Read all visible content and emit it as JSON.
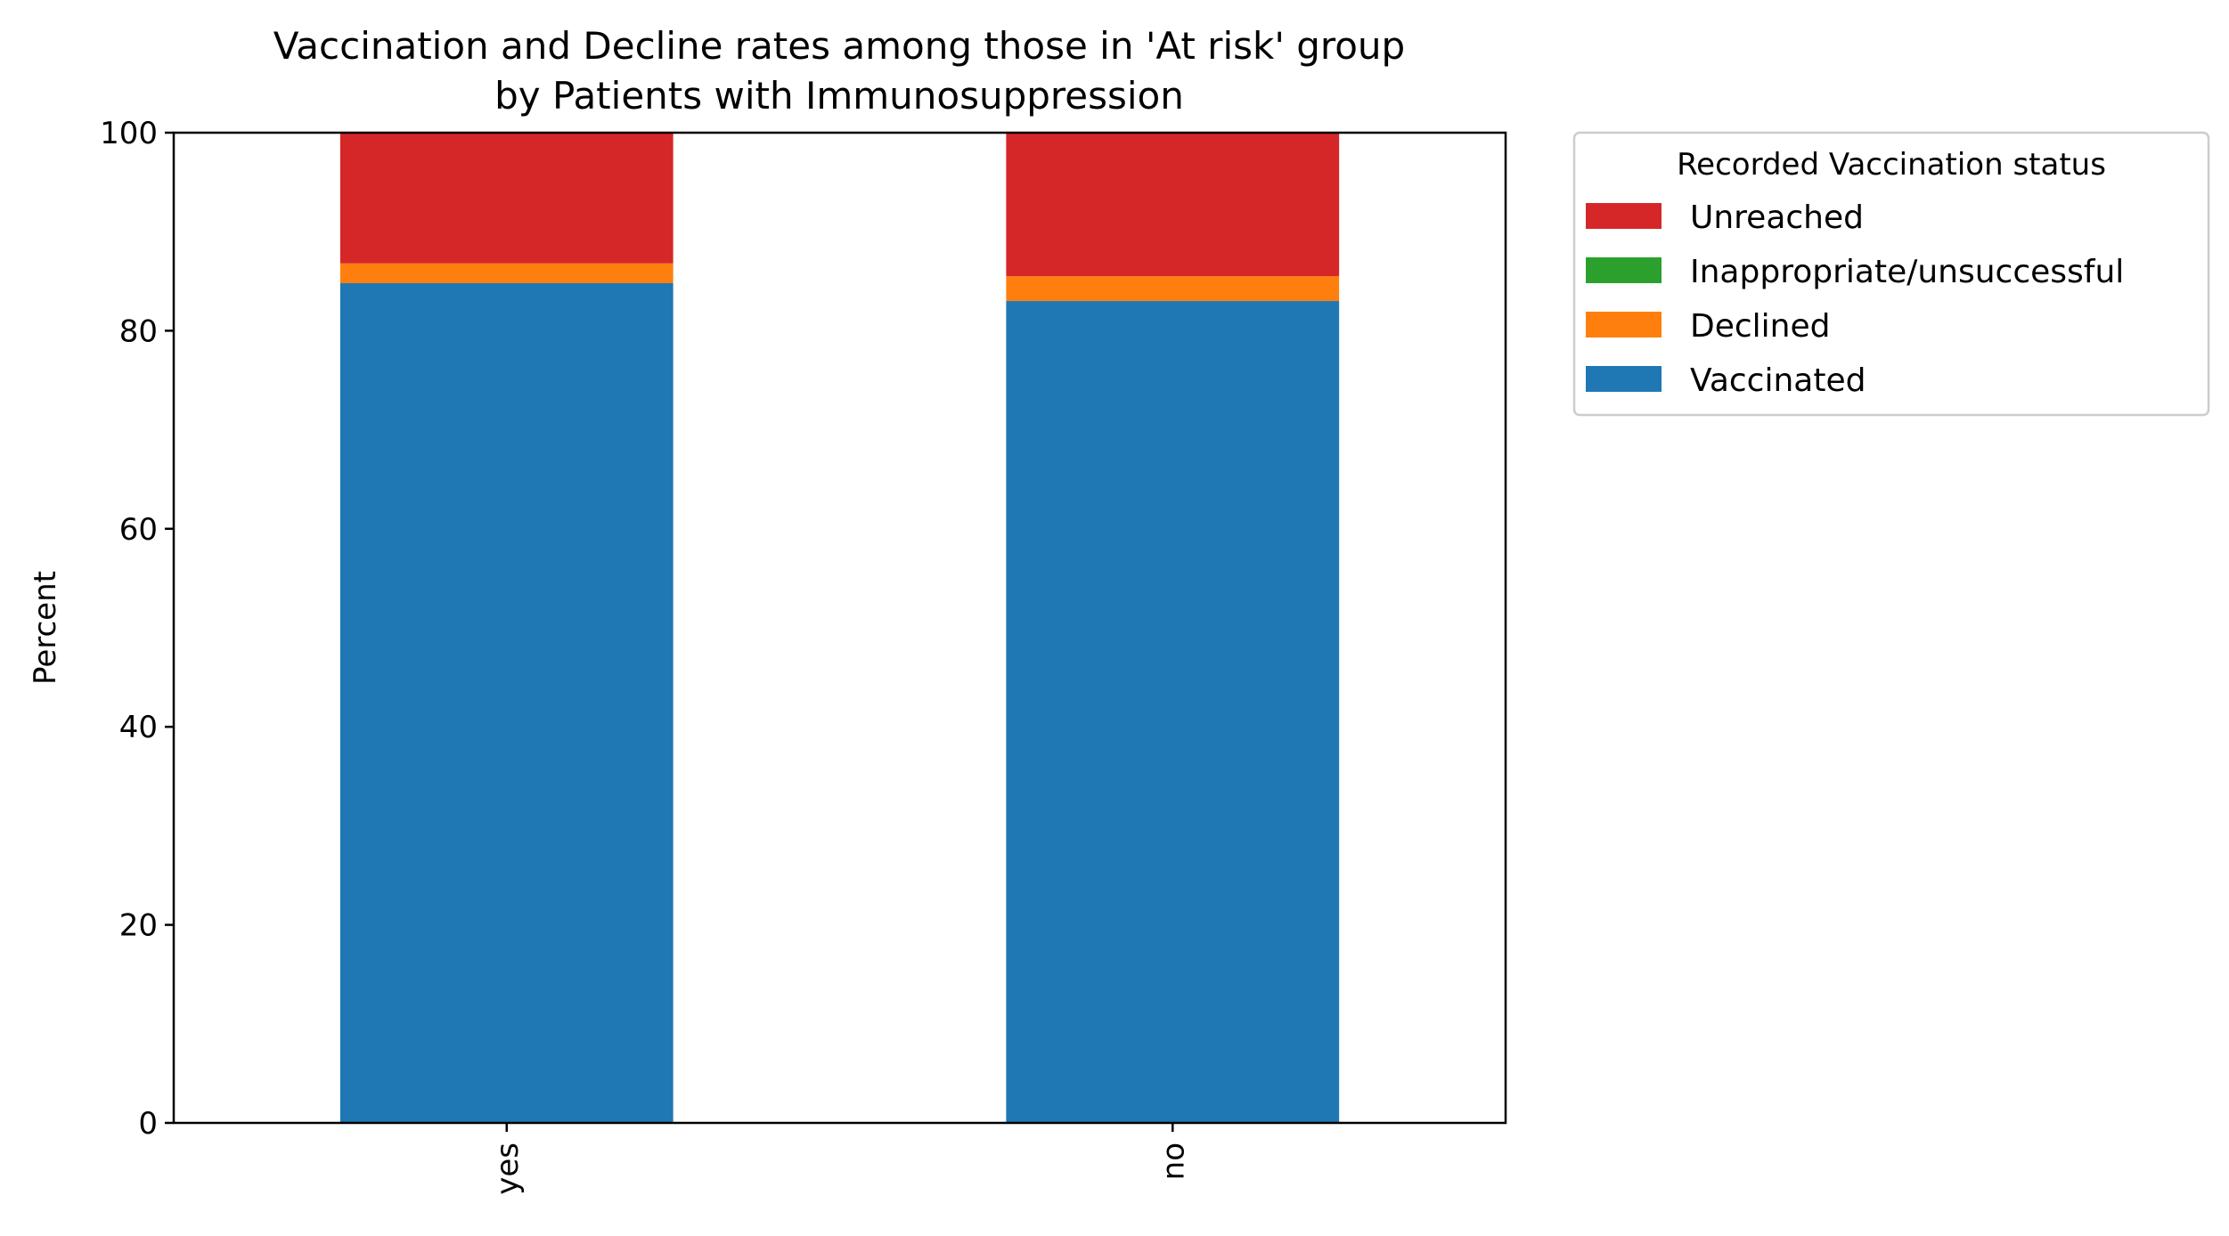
{
  "chart_data": {
    "type": "bar",
    "stacked": true,
    "title_line1": "Vaccination and Decline rates among those in 'At risk' group",
    "title_line2": "by Patients with Immunosuppression",
    "xlabel": "",
    "ylabel": "Percent",
    "ylim": [
      0,
      100
    ],
    "yticks": [
      0,
      20,
      40,
      60,
      80,
      100
    ],
    "categories": [
      "yes",
      "no"
    ],
    "series": [
      {
        "name": "Vaccinated",
        "color": "#1f77b4",
        "values": [
          84.8,
          83.0
        ]
      },
      {
        "name": "Declined",
        "color": "#ff7f0e",
        "values": [
          2.0,
          2.5
        ]
      },
      {
        "name": "Inappropriate/unsuccessful",
        "color": "#2ca02c",
        "values": [
          0.0,
          0.0
        ]
      },
      {
        "name": "Unreached",
        "color": "#d62728",
        "values": [
          13.2,
          14.5
        ]
      }
    ],
    "legend": {
      "title": "Recorded Vaccination status",
      "placement": "outside-top-right",
      "order": [
        "Unreached",
        "Inappropriate/unsuccessful",
        "Declined",
        "Vaccinated"
      ]
    },
    "grid": false
  }
}
